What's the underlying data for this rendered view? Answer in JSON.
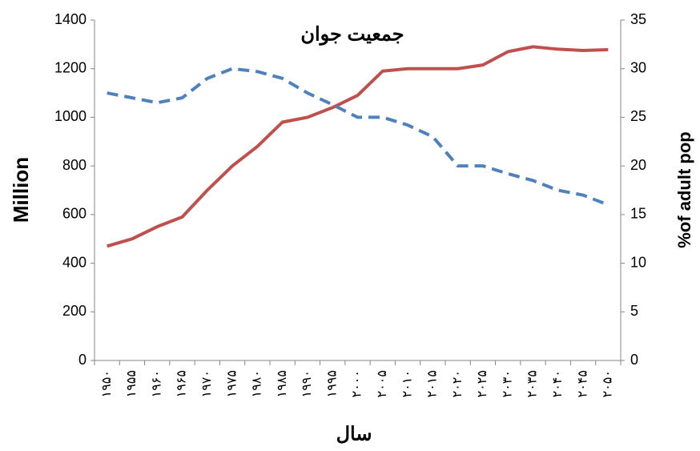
{
  "chart_data": {
    "type": "line",
    "title": "جمعیت جوان",
    "x_label": "سال",
    "y_label": "Million",
    "y2_label": "%of adult pop",
    "categories": [
      "۱۹۵۰",
      "۱۹۵۵",
      "۱۹۶۰",
      "۱۹۶۵",
      "۱۹۷۰",
      "۱۹۷۵",
      "۱۹۸۰",
      "۱۹۸۵",
      "۱۹۹۰",
      "۱۹۹۵",
      "۲۰۰۰",
      "۲۰۰۵",
      "۲۰۱۰",
      "۲۰۱۵",
      "۲۰۲۰",
      "۲۰۲۵",
      "۲۰۳۰",
      "۲۰۳۵",
      "۲۰۴۰",
      "۲۰۴۵",
      "۲۰۵۰"
    ],
    "series": [
      {
        "color": "#c0504d",
        "values": [
          470,
          500,
          550,
          590,
          700,
          800,
          880,
          980,
          1000,
          1040,
          1090,
          1190,
          1200,
          1200,
          1200,
          1215,
          1270,
          1290,
          1280,
          1275,
          1278
        ]
      },
      {
        "color": "#4f81bd",
        "axis": "y2",
        "dashed": true,
        "values": [
          27.5,
          27,
          26.5,
          27,
          29,
          30,
          29.7,
          29,
          27.5,
          26.3,
          25,
          25,
          24.2,
          23,
          20,
          20,
          19.2,
          18.5,
          17.5,
          17,
          16
        ]
      }
    ],
    "ylim": [
      0,
      1400
    ],
    "yticks": [
      0,
      200,
      400,
      600,
      800,
      1000,
      1200,
      1400
    ],
    "y2lim": [
      0,
      35
    ],
    "y2ticks": [
      0,
      5,
      10,
      15,
      20,
      25,
      30,
      35
    ],
    "grid": false
  }
}
